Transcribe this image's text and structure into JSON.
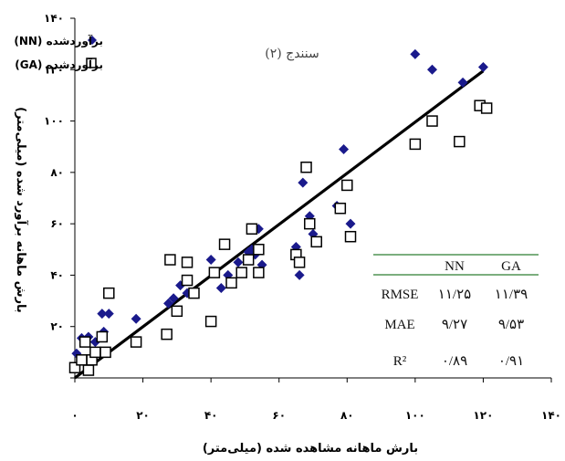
{
  "chart_data": {
    "type": "scatter",
    "title": "سنندج (۲)",
    "xlabel": "بارش ماهانه مشاهده شده (میلی‌متر)",
    "ylabel": "بارش ماهانه برآورد شده (میلی‌متر)",
    "xlim": [
      0,
      140
    ],
    "ylim": [
      0,
      140
    ],
    "x_ticks": [
      "۰",
      "۲۰",
      "۴۰",
      "۶۰",
      "۸۰",
      "۱۰۰",
      "۱۲۰",
      "۱۴۰"
    ],
    "y_ticks": [
      "",
      "۲۰",
      "۴۰",
      "۶۰",
      "۸۰",
      "۱۰۰",
      "۱۲۰",
      "۱۴۰"
    ],
    "grid": false,
    "legend_position": "top-left",
    "series": [
      {
        "name": "برآوردشده (NN)",
        "marker": "diamond",
        "color": "#1a1a8c",
        "points": [
          [
            0.5,
            9.5
          ],
          [
            2,
            15.5
          ],
          [
            4,
            16
          ],
          [
            6,
            14
          ],
          [
            8,
            25
          ],
          [
            8.5,
            18
          ],
          [
            10,
            25
          ],
          [
            18,
            23
          ],
          [
            27.5,
            29
          ],
          [
            29,
            31
          ],
          [
            31,
            36
          ],
          [
            33,
            33
          ],
          [
            40,
            46
          ],
          [
            43,
            35
          ],
          [
            45,
            40
          ],
          [
            48,
            45
          ],
          [
            51,
            49
          ],
          [
            52,
            50
          ],
          [
            53,
            48
          ],
          [
            54,
            58
          ],
          [
            55,
            44
          ],
          [
            65,
            51
          ],
          [
            66,
            40
          ],
          [
            67,
            76
          ],
          [
            69,
            63
          ],
          [
            70,
            56
          ],
          [
            77,
            67
          ],
          [
            79,
            89
          ],
          [
            81,
            60
          ],
          [
            100,
            126
          ],
          [
            105,
            120
          ],
          [
            114,
            115
          ],
          [
            120,
            121
          ]
        ]
      },
      {
        "name": "برآوردشده (GA)",
        "marker": "square",
        "color": "#000000",
        "points": [
          [
            0,
            4
          ],
          [
            2,
            7
          ],
          [
            3,
            14
          ],
          [
            4,
            3
          ],
          [
            5,
            7
          ],
          [
            6,
            10
          ],
          [
            8,
            16
          ],
          [
            9,
            10
          ],
          [
            10,
            33
          ],
          [
            18,
            14
          ],
          [
            27,
            17
          ],
          [
            28,
            46
          ],
          [
            30,
            26
          ],
          [
            33,
            38
          ],
          [
            33,
            45
          ],
          [
            35,
            33
          ],
          [
            40,
            22
          ],
          [
            41,
            41
          ],
          [
            44,
            52
          ],
          [
            46,
            37
          ],
          [
            49,
            41
          ],
          [
            51,
            46
          ],
          [
            52,
            58
          ],
          [
            54,
            50
          ],
          [
            54,
            41
          ],
          [
            65,
            48
          ],
          [
            66,
            45
          ],
          [
            68,
            82
          ],
          [
            69,
            60
          ],
          [
            71,
            53
          ],
          [
            78,
            66
          ],
          [
            80,
            75
          ],
          [
            81,
            55
          ],
          [
            100,
            91
          ],
          [
            105,
            100
          ],
          [
            113,
            92
          ],
          [
            119,
            106
          ],
          [
            121,
            105
          ]
        ]
      },
      {
        "name": "",
        "type": "line",
        "color": "#000000",
        "points": [
          [
            0,
            0
          ],
          [
            120,
            119.5
          ]
        ]
      }
    ],
    "stats_table": {
      "columns": [
        "NN",
        "GA"
      ],
      "rows": [
        {
          "label": "RMSE",
          "values": [
            "۱۱/۲۵",
            "۱۱/۳۹"
          ]
        },
        {
          "label": "MAE",
          "values": [
            "۹/۲۷",
            "۹/۵۳"
          ]
        },
        {
          "label": "R²",
          "values": [
            "۰/۸۹",
            "۰/۹۱"
          ]
        }
      ]
    }
  },
  "colors": {
    "axis": "#000000",
    "table_rule": "#2e7d32"
  }
}
